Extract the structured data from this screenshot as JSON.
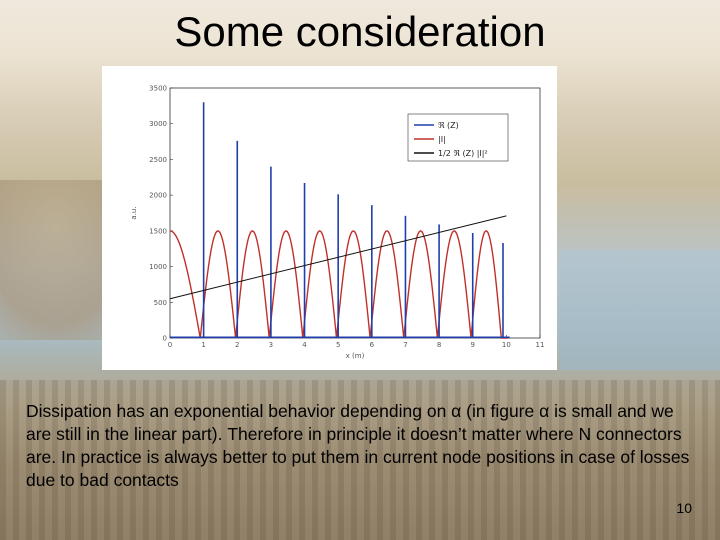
{
  "slide": {
    "title": "Some consideration",
    "body": "Dissipation has an exponential behavior depending on α (in figure α is small and we are still in the linear part).  Therefore in principle it doesn’t matter where N connectors are. In practice is always better to put them in current node positions in case of losses due to bad contacts",
    "page_number": "10"
  },
  "chart_data": {
    "type": "line",
    "xlim": [
      0,
      11
    ],
    "ylim": [
      0,
      3500
    ],
    "x_ticks": [
      0,
      1,
      2,
      3,
      4,
      5,
      6,
      7,
      8,
      9,
      10,
      11
    ],
    "x_tick_labels": [
      "0",
      "1",
      "2",
      "3",
      "4",
      "5",
      "6",
      "7",
      "8",
      "9",
      "10",
      "11"
    ],
    "y_ticks": [
      0,
      500,
      1000,
      1500,
      2000,
      2500,
      3000,
      3500
    ],
    "y_tick_labels": [
      "0",
      "500",
      "1000",
      "1500",
      "2000",
      "2500",
      "3000",
      "3500"
    ],
    "xlabel": "x (m)",
    "ylabel": "a.u.",
    "legend_position": "top-right",
    "series": [
      {
        "name": "ℜ (Z)",
        "color": "#1f3fae",
        "style": "spikes",
        "spikes": [
          {
            "x": 1.0,
            "y": 3300
          },
          {
            "x": 2.0,
            "y": 2760
          },
          {
            "x": 3.0,
            "y": 2400
          },
          {
            "x": 4.0,
            "y": 2170
          },
          {
            "x": 5.0,
            "y": 2010
          },
          {
            "x": 6.0,
            "y": 1860
          },
          {
            "x": 7.0,
            "y": 1710
          },
          {
            "x": 8.0,
            "y": 1590
          },
          {
            "x": 9.0,
            "y": 1470
          },
          {
            "x": 9.9,
            "y": 1330
          }
        ]
      },
      {
        "name": "|I|",
        "color": "#c0302a",
        "style": "arches",
        "amplitude": 1500,
        "zeros": [
          0.9,
          1.95,
          2.95,
          3.95,
          4.95,
          5.95,
          6.95,
          7.95,
          8.95,
          9.85,
          10.05
        ]
      },
      {
        "name": "1/2 ℜ (Z) |I|²",
        "color": "#111111",
        "style": "line",
        "x": [
          0.0,
          10.0
        ],
        "y": [
          550,
          1710
        ]
      }
    ]
  }
}
